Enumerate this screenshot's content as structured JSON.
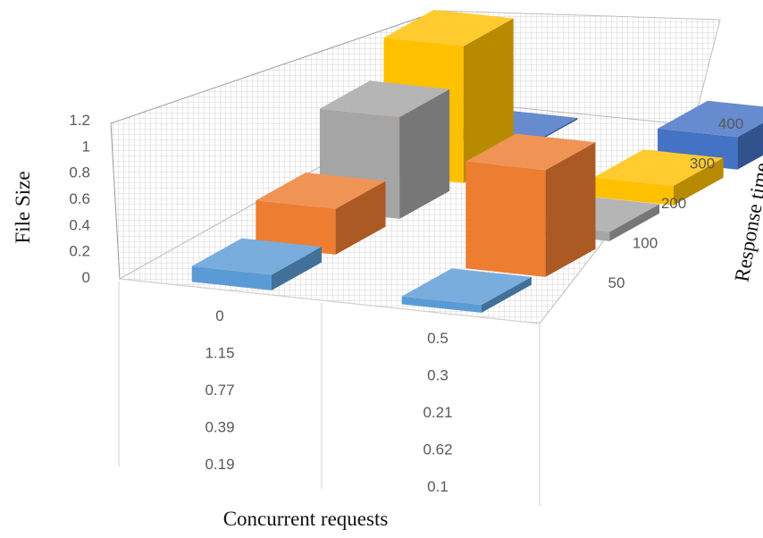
{
  "chart_data": {
    "type": "bar",
    "subtype": "3d-column",
    "title": "",
    "xlabel": "Concurrent requests",
    "ylabel": "Response time",
    "zlabel": "File Size",
    "z_ticks": [
      "0",
      "0.2",
      "0.4",
      "0.6",
      "0.8",
      "1",
      "1.2"
    ],
    "zlim": [
      0,
      1.2
    ],
    "y_ticks": [
      "50",
      "100",
      "200",
      "300",
      "400"
    ],
    "x_tick_columns": [
      [
        "0",
        "1.15",
        "0.77",
        "0.39",
        "0.19"
      ],
      [
        "0.5",
        "0.3",
        "0.21",
        "0.62",
        "0.1"
      ]
    ],
    "grid": true,
    "legend": "none",
    "series": [
      {
        "row": "50",
        "color": "#5b9bd5",
        "values": [
          0.12,
          0.06
        ]
      },
      {
        "row": "100",
        "color": "#ed7d31",
        "values": [
          0.35,
          0.82
        ]
      },
      {
        "row": "200",
        "color": "#a5a5a5",
        "values": [
          0.78,
          0.07
        ]
      },
      {
        "row": "300",
        "color": "#ffc000",
        "values": [
          1.05,
          0.15
        ]
      },
      {
        "row": "400",
        "color": "#4472c4",
        "values": [
          0.0,
          0.25
        ]
      }
    ]
  }
}
